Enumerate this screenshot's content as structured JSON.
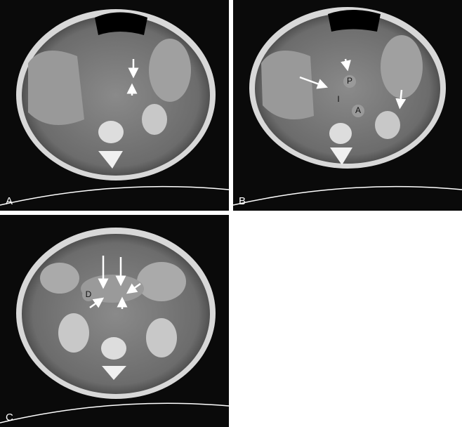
{
  "panels": [
    {
      "label": "A"
    },
    {
      "label": "B",
      "annotations": [
        "P",
        "I",
        "A"
      ]
    },
    {
      "label": "C",
      "annotations": [
        "D"
      ]
    }
  ]
}
